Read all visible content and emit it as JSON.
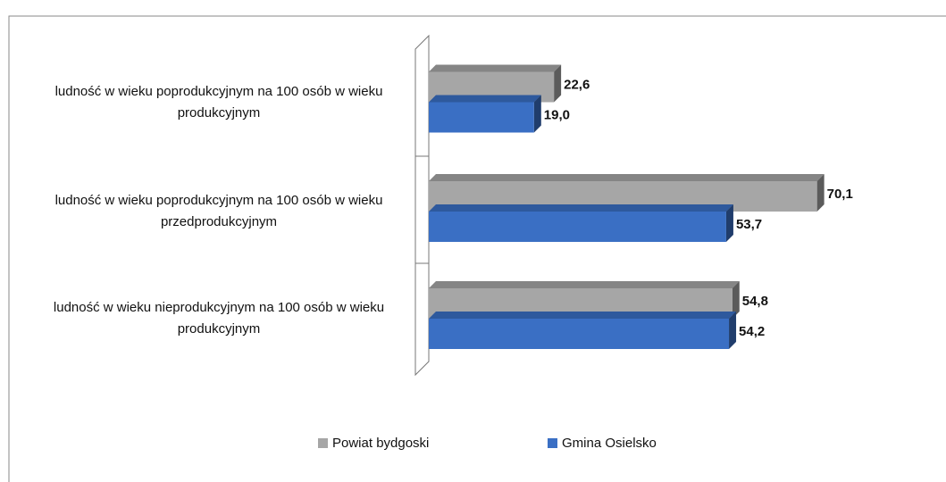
{
  "chart_data": {
    "type": "hbar3d",
    "categories": [
      "ludność w wieku poprodukcyjnym  na 100 osób w wieku produkcyjnym",
      "ludność w wieku poprodukcyjnym  na 100 osób w wieku przedprodukcyjnym",
      "ludność w wieku nieprodukcyjnym  na 100 osób w wieku produkcyjnym"
    ],
    "series": [
      {
        "name": "Powiat bydgoski",
        "color": "#a6a6a6",
        "values": [
          22.6,
          70.1,
          54.8
        ],
        "value_labels": [
          "22,6",
          "70,1",
          "54,8"
        ]
      },
      {
        "name": "Gmina Osielsko",
        "color": "#3a6fc4",
        "values": [
          19.0,
          53.7,
          54.2
        ],
        "value_labels": [
          "19,0",
          "53,7",
          "54,2"
        ]
      }
    ],
    "xlim": [
      0,
      80
    ],
    "legend": "bottom"
  }
}
